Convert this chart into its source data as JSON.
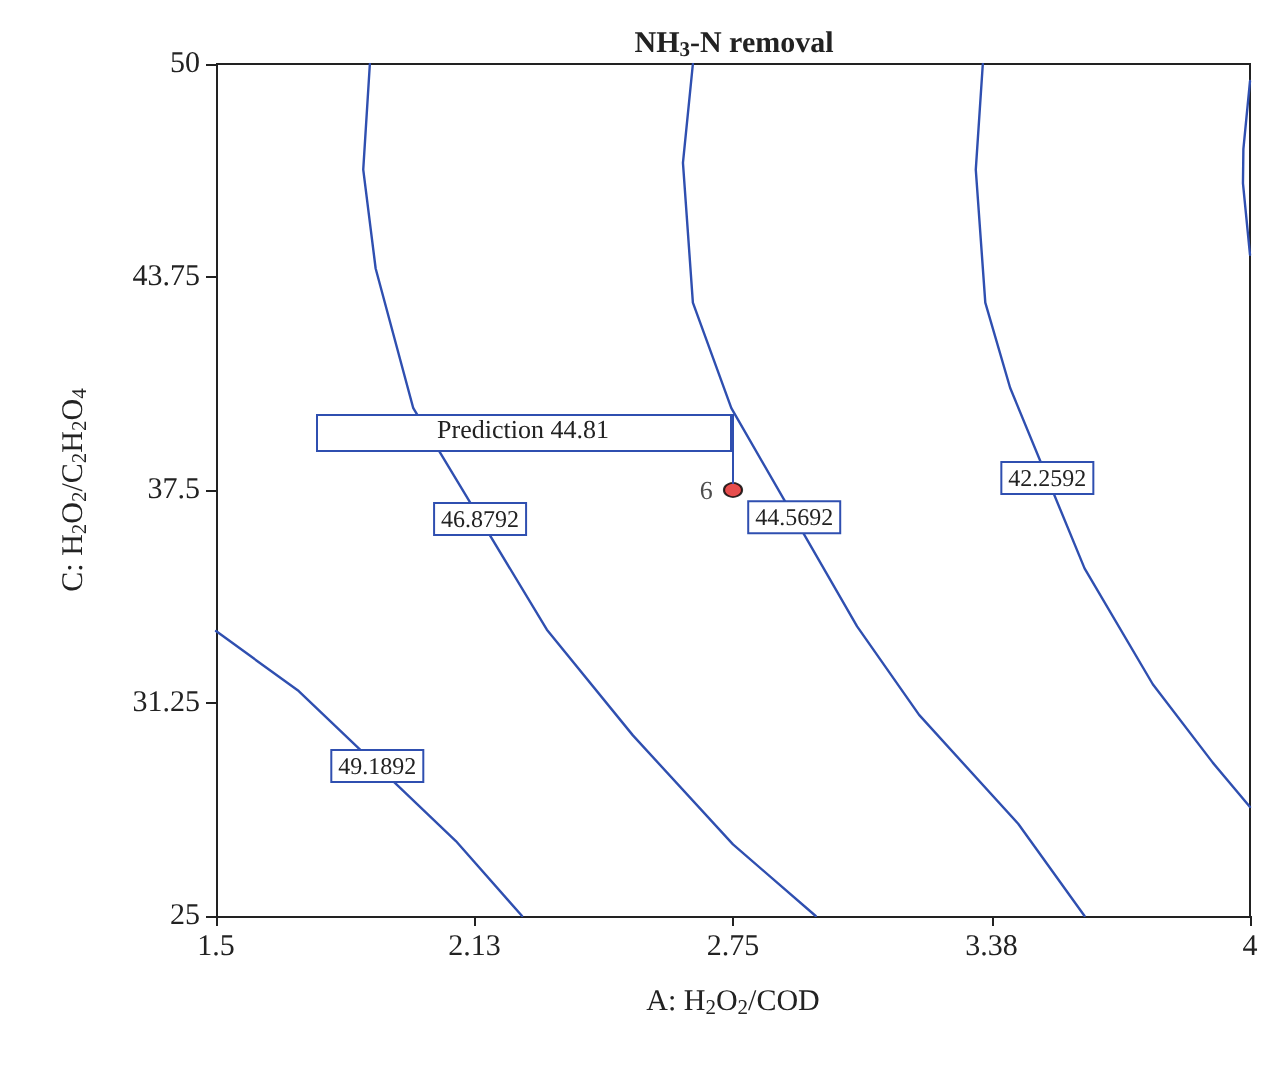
{
  "chart_data": {
    "type": "line",
    "title": "NH$_{3}$-N removal",
    "xlabel": "A: H$_{2}$O$_{2}$/COD",
    "ylabel": "C: H$_{2}$O$_{2}$/C$_{2}$H$_{2}$O$_{4}$",
    "xlim": [
      1.5,
      4
    ],
    "xticks": [
      1.5,
      {
        "value": 2.125,
        "label": "2.13"
      },
      2.75,
      {
        "value": 3.375,
        "label": "3.38"
      },
      4
    ],
    "ylim": [
      25,
      50
    ],
    "yticks": [
      25,
      31.25,
      37.5,
      43.75,
      50
    ],
    "grid": false,
    "line_style": "solid",
    "series": [
      {
        "name": "49.1892",
        "color": "#2f4fb0",
        "x": [
          1.5,
          1.7,
          2.08,
          2.24
        ],
        "values": [
          33.36,
          31.6,
          27.2,
          25
        ]
      },
      {
        "name": "46.8792",
        "color": "#2f4fb0",
        "x": [
          1.872,
          1.856,
          1.886,
          1.977,
          2.3,
          2.508,
          2.75,
          2.95
        ],
        "values": [
          50,
          46.9,
          44,
          39.9,
          33.4,
          30.3,
          27.1,
          25
        ]
      },
      {
        "name": "44.5692",
        "color": "#2f4fb0",
        "x": [
          2.653,
          2.629,
          2.653,
          2.746,
          3.05,
          3.2,
          3.44,
          3.6
        ],
        "values": [
          50,
          47.1,
          43,
          39.9,
          33.5,
          30.9,
          27.7,
          25
        ]
      },
      {
        "name": "42.2592",
        "color": "#2f4fb0",
        "x": [
          3.354,
          3.337,
          3.36,
          3.42,
          3.6,
          3.765,
          3.91,
          4
        ],
        "values": [
          50,
          46.9,
          43,
          40.5,
          35.2,
          31.8,
          29.5,
          28.2
        ]
      },
      {
        "color": "#2f4fb0",
        "x": [
          4,
          3.984,
          3.983,
          4
        ],
        "values": [
          49.5,
          47.5,
          46.5,
          44.4
        ]
      },
      {
        "type": "scatter",
        "name": "6",
        "marker": "circle",
        "color": "#e02020",
        "x": [
          2.75
        ],
        "values": [
          37.5
        ]
      }
    ],
    "annotations": [
      "Prediction 44.81"
    ]
  }
}
